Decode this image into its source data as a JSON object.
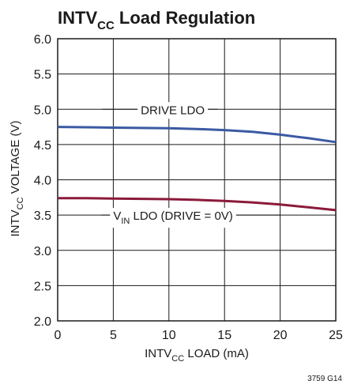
{
  "chart_data": {
    "type": "line",
    "title_main": "INTV",
    "title_sub": "CC",
    "title_rest": " Load Regulation",
    "xlabel_main": "INTV",
    "xlabel_sub": "CC",
    "xlabel_rest": " LOAD (mA)",
    "ylabel_main": "INTV",
    "ylabel_sub": "CC",
    "ylabel_rest": " VOLTAGE (V)",
    "xlim": [
      0,
      25
    ],
    "ylim": [
      2.0,
      6.0
    ],
    "x_ticks": [
      0,
      5,
      10,
      15,
      20,
      25
    ],
    "y_ticks": [
      2.0,
      2.5,
      3.0,
      3.5,
      4.0,
      4.5,
      5.0,
      5.5,
      6.0
    ],
    "x_tick_labels": [
      "0",
      "5",
      "10",
      "15",
      "20",
      "25"
    ],
    "y_tick_labels": [
      "2.0",
      "2.5",
      "3.0",
      "3.5",
      "4.0",
      "4.5",
      "5.0",
      "5.5",
      "6.0"
    ],
    "grid": true,
    "series": [
      {
        "color": "#3b5aa3",
        "x": [
          0,
          2.5,
          5,
          7.5,
          10,
          12.5,
          15,
          17.5,
          20,
          22.5,
          25
        ],
        "y": [
          4.75,
          4.745,
          4.74,
          4.735,
          4.73,
          4.72,
          4.705,
          4.68,
          4.64,
          4.59,
          4.535
        ]
      },
      {
        "color": "#8b1a3a",
        "x": [
          0,
          2.5,
          5,
          7.5,
          10,
          12.5,
          15,
          17.5,
          20,
          22.5,
          25
        ],
        "y": [
          3.74,
          3.74,
          3.735,
          3.73,
          3.725,
          3.715,
          3.7,
          3.68,
          3.65,
          3.61,
          3.57
        ]
      }
    ],
    "annotations": {
      "drive": {
        "text": "DRIVE LDO",
        "x": 7.5,
        "y": 5.0,
        "leader_from_x": 4.0,
        "leader_to_x": 14.4
      },
      "vin": {
        "text_main": "V",
        "text_sub": "IN",
        "text_rest": " LDO (DRIVE = 0V)",
        "x": 4.0,
        "y": 3.5,
        "leader_from_x": 3.9,
        "leader_to_x": 20.0
      }
    },
    "figure_code": "3759 G14"
  }
}
